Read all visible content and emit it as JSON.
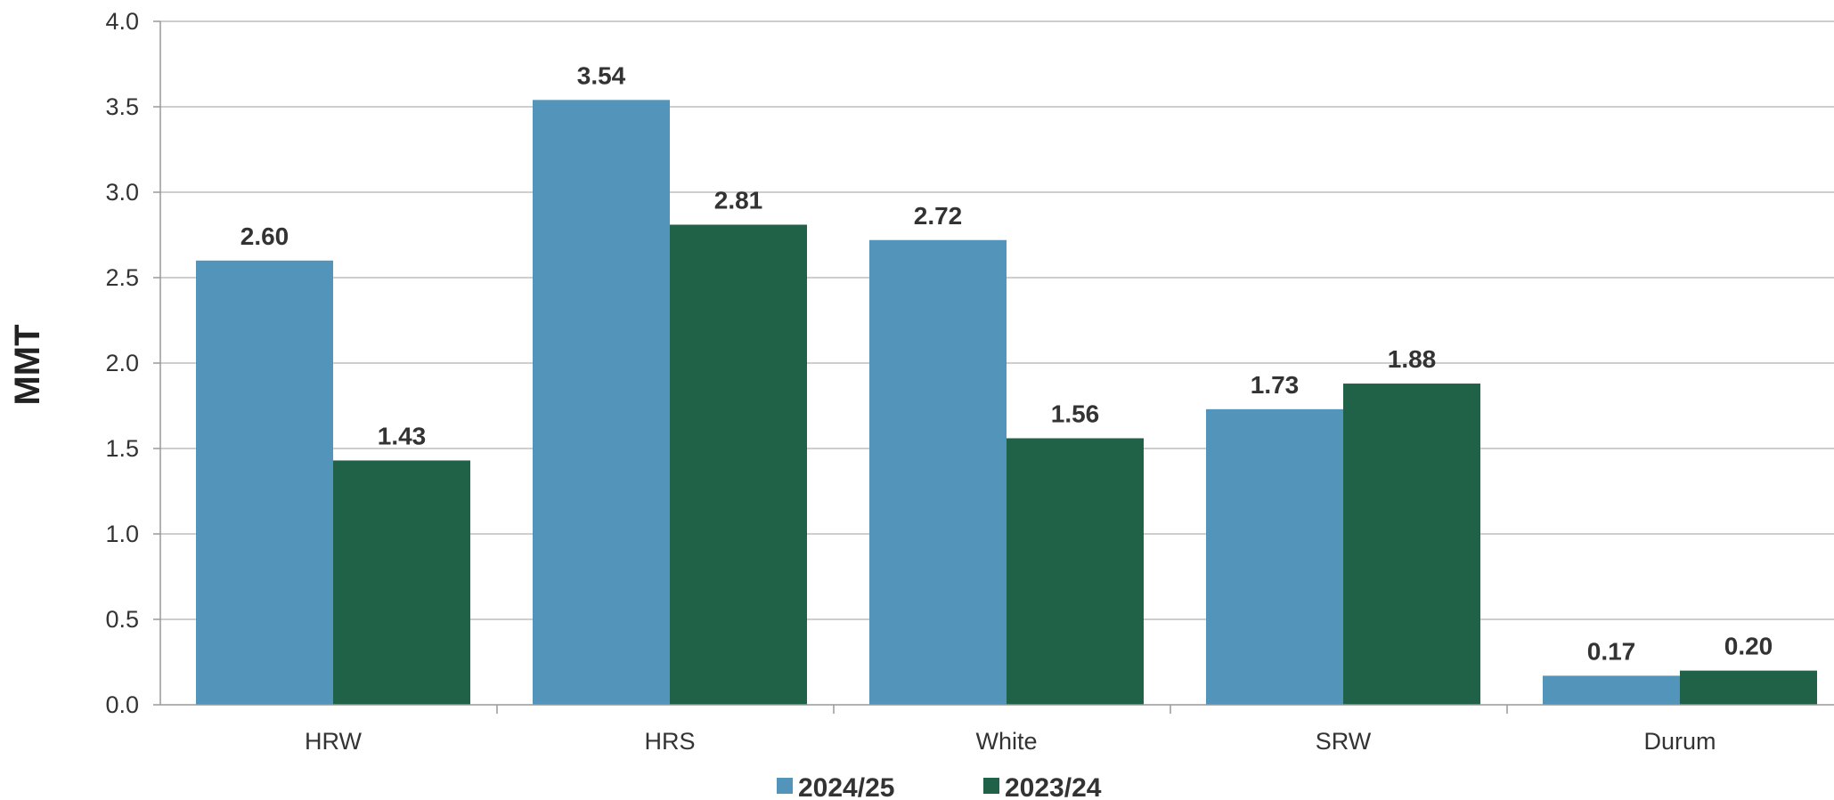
{
  "chart_data": {
    "type": "bar",
    "categories": [
      "HRW",
      "HRS",
      "White",
      "SRW",
      "Durum"
    ],
    "series": [
      {
        "name": "2024/25",
        "values": [
          2.6,
          3.54,
          2.72,
          1.73,
          0.17
        ],
        "labels": [
          "2.60",
          "3.54",
          "2.72",
          "1.73",
          "0.17"
        ],
        "color": "#5294BA"
      },
      {
        "name": "2023/24",
        "values": [
          1.43,
          2.81,
          1.56,
          1.88,
          0.2
        ],
        "labels": [
          "1.43",
          "2.81",
          "1.56",
          "1.88",
          "0.20"
        ],
        "color": "#206248"
      }
    ],
    "xlabel": "",
    "ylabel": "MMT",
    "ylim": [
      0,
      4.0
    ],
    "yticks": [
      "0.0",
      "0.5",
      "1.0",
      "1.5",
      "2.0",
      "2.5",
      "3.0",
      "3.5",
      "4.0"
    ],
    "grid": true,
    "legend": "bottom-center"
  }
}
